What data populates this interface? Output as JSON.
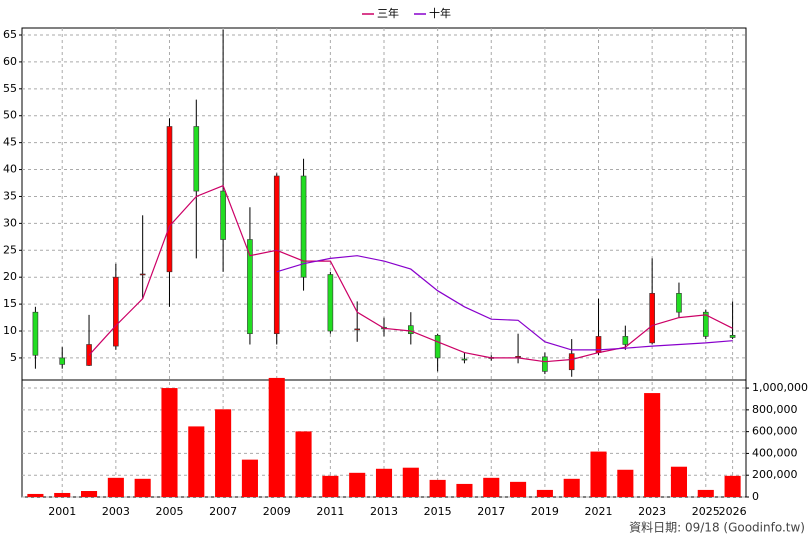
{
  "chart_data": {
    "type": "candlestick",
    "categories": [
      null,
      "2001",
      null,
      "2003",
      null,
      "2005",
      null,
      "2007",
      null,
      "2009",
      null,
      "2011",
      null,
      "2013",
      null,
      "2015",
      null,
      "2017",
      null,
      "2019",
      null,
      "2021",
      null,
      "2023",
      null,
      "2025",
      "2026"
    ],
    "open": [
      13.5,
      5,
      3.6,
      7.2,
      20.5,
      21,
      48,
      36,
      27,
      9.5,
      38.8,
      20.5,
      10.2,
      10.7,
      11,
      9.2,
      4.8,
      5.1,
      5.2,
      5.2,
      2.8,
      6,
      9,
      7.8,
      17,
      13.5,
      9.2
    ],
    "high": [
      14.5,
      7,
      13,
      22.5,
      31.5,
      49.5,
      53,
      66,
      33,
      39.3,
      42,
      21,
      15.5,
      12.5,
      13.5,
      9.5,
      6,
      5.5,
      9.5,
      6,
      8.5,
      16,
      11,
      23.5,
      19,
      14,
      15.5
    ],
    "low": [
      3,
      3,
      3.5,
      6.5,
      16,
      14.5,
      23.5,
      21,
      7.5,
      7.5,
      17.5,
      9.5,
      8,
      9,
      7.5,
      2.5,
      4,
      4.5,
      4,
      2,
      1.5,
      5.5,
      6.5,
      7.5,
      12.5,
      8.5,
      8.5
    ],
    "close": [
      5.5,
      3.8,
      7.5,
      20,
      20.6,
      48,
      36,
      27,
      9.5,
      38.8,
      20,
      10,
      10.4,
      10.4,
      9.5,
      5,
      4.6,
      4.9,
      5.3,
      2.5,
      5.8,
      9,
      7.5,
      17,
      13.5,
      9,
      8.8
    ],
    "up_color": "#ff0000",
    "down_color": "#22dd22",
    "series": [
      {
        "name": "三年",
        "color": "#cc0066",
        "values": [
          null,
          null,
          5.5,
          11,
          16,
          29.5,
          35,
          37,
          24,
          25,
          23,
          23,
          13.5,
          10.5,
          10,
          8,
          6,
          5,
          5,
          4.3,
          4.7,
          6,
          7,
          11,
          12.5,
          13,
          10.5
        ]
      },
      {
        "name": "十年",
        "color": "#8800cc",
        "values": [
          null,
          null,
          null,
          null,
          null,
          null,
          null,
          null,
          null,
          21,
          22.5,
          23.5,
          24,
          23,
          21.5,
          17.5,
          14.5,
          12.2,
          12,
          8,
          6.5,
          6.5,
          6.8,
          7.2,
          7.5,
          7.8,
          8.2
        ]
      }
    ],
    "ylim": [
      0.9,
      66.3
    ],
    "yticks": [
      5,
      10,
      15,
      20,
      25,
      30,
      35,
      40,
      45,
      50,
      55,
      60,
      65
    ],
    "grid": true,
    "volume": {
      "color": "#ff0000",
      "values": [
        28000,
        37000,
        55000,
        176000,
        167000,
        1000000,
        648000,
        805000,
        343000,
        1093000,
        602000,
        194000,
        222000,
        259000,
        269000,
        157000,
        120000,
        176000,
        139000,
        65000,
        167000,
        417000,
        250000,
        954000,
        278000,
        65000,
        194000
      ],
      "ylim": [
        0,
        1074000
      ],
      "yticks": [
        0,
        {
          "value": 200000,
          "label": "200,000"
        },
        {
          "value": 400000,
          "label": "400,000"
        },
        {
          "value": 600000,
          "label": "600,000"
        },
        {
          "value": 800000,
          "label": "800,000"
        },
        {
          "value": 1000000,
          "label": "1,000,000"
        }
      ]
    }
  },
  "source": "資料日期: 09/18 (Goodinfo.tw)"
}
